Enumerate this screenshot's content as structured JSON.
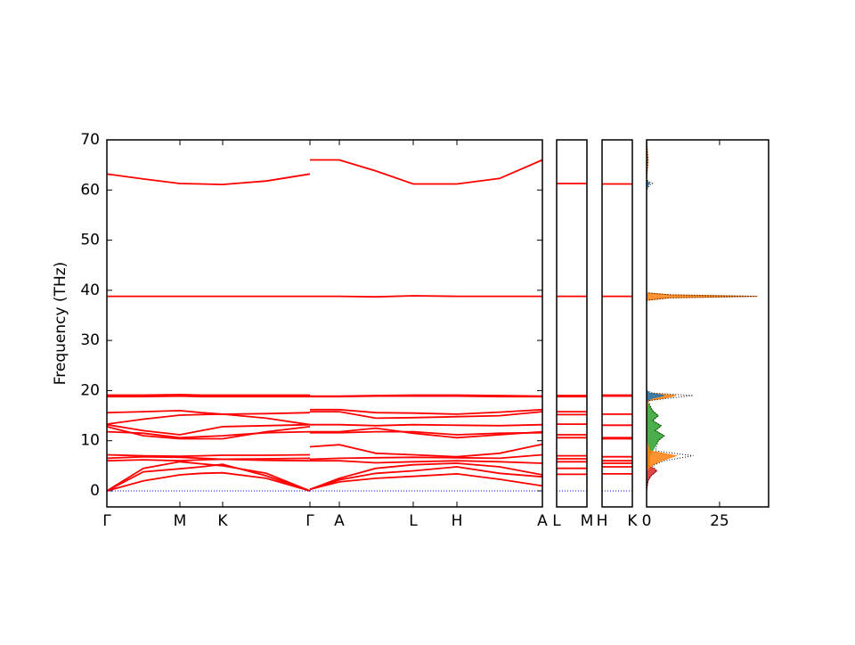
{
  "chart_data": [
    {
      "type": "line",
      "ylabel": "Frequency (THz)",
      "x": [
        0,
        0.41,
        0.82,
        1.06,
        1.3,
        1.79,
        2.28,
        2.28,
        2.28,
        2.61,
        3.02,
        3.44,
        3.93,
        4.41,
        4.89
      ],
      "xlim": [
        0,
        4.89
      ],
      "xticks": [
        {
          "value": 0,
          "label": "Γ"
        },
        {
          "value": 0.82,
          "label": "M"
        },
        {
          "value": 1.3,
          "label": "K"
        },
        {
          "value": 2.28,
          "label": "Γ"
        },
        {
          "value": 2.61,
          "label": "A"
        },
        {
          "value": 3.44,
          "label": "L"
        },
        {
          "value": 3.93,
          "label": "H"
        },
        {
          "value": 4.89,
          "label": "A"
        }
      ],
      "ylim": [
        -3.2,
        70
      ],
      "yticks": [
        0,
        10,
        20,
        30,
        40,
        50,
        60,
        70
      ],
      "series": [
        {
          "color": "#ff0000",
          "values": [
            63.2,
            62.2,
            61.3,
            61.2,
            61.1,
            61.8,
            63.2,
            null,
            66,
            66,
            63.8,
            61.2,
            61.2,
            62.3,
            66
          ]
        },
        {
          "color": "#ff0000",
          "values": [
            38.8,
            38.8,
            38.8,
            38.8,
            38.8,
            38.8,
            38.8,
            null,
            38.8,
            38.8,
            38.7,
            38.9,
            38.8,
            38.8,
            38.8
          ]
        },
        {
          "color": "#ff0000",
          "values": [
            19.1,
            19.1,
            19.2,
            19.1,
            19.1,
            19.1,
            19.1,
            null,
            18.9,
            18.9,
            19.0,
            19.1,
            19.1,
            19.0,
            18.9
          ]
        },
        {
          "color": "#ff0000",
          "values": [
            18.8,
            18.8,
            18.9,
            18.8,
            18.8,
            18.8,
            18.8,
            null,
            18.8,
            18.8,
            18.9,
            18.9,
            18.9,
            18.8,
            18.8
          ]
        },
        {
          "color": "#ff0000",
          "values": [
            15.6,
            15.8,
            16.0,
            15.6,
            15.3,
            15.4,
            15.6,
            null,
            16.2,
            16.2,
            15.6,
            15.5,
            15.3,
            15.7,
            16.2
          ]
        },
        {
          "color": "#ff0000",
          "values": [
            13.3,
            14.3,
            15.1,
            15.2,
            15.3,
            14.5,
            13.2,
            null,
            15.8,
            15.8,
            14.5,
            14.6,
            14.8,
            15.0,
            15.8
          ]
        },
        {
          "color": "#ff0000",
          "values": [
            13.2,
            12.0,
            11.2,
            12.0,
            12.8,
            13.0,
            13.2,
            null,
            13.2,
            13.2,
            13.0,
            13.2,
            13.1,
            13.0,
            13.2
          ]
        },
        {
          "color": "#ff0000",
          "values": [
            12.8,
            11.0,
            10.4,
            10.4,
            10.4,
            11.8,
            12.8,
            null,
            11.8,
            11.8,
            12.5,
            11.5,
            10.6,
            11.2,
            11.8
          ]
        },
        {
          "color": "#ff0000",
          "values": [
            11.8,
            11.5,
            10.6,
            10.8,
            11.0,
            11.6,
            11.8,
            null,
            11.6,
            11.6,
            11.8,
            11.8,
            11.2,
            11.5,
            11.6
          ]
        },
        {
          "color": "#ff0000",
          "values": [
            7.2,
            7.0,
            6.9,
            7.0,
            7.1,
            7.1,
            7.2,
            null,
            8.8,
            9.2,
            7.5,
            7.2,
            6.8,
            7.5,
            9.3
          ]
        },
        {
          "color": "#ff0000",
          "values": [
            6.5,
            6.8,
            6.7,
            6.5,
            6.3,
            6.4,
            6.5,
            null,
            6.3,
            6.5,
            6.6,
            6.7,
            6.6,
            6.5,
            7.2
          ]
        },
        {
          "color": "#ff0000",
          "values": [
            6.0,
            6.2,
            6.0,
            6.2,
            6.3,
            6.1,
            6.0,
            null,
            6.0,
            6.0,
            5.6,
            5.8,
            6.0,
            5.8,
            5.5
          ]
        },
        {
          "color": "#ff0000",
          "values": [
            0,
            4.5,
            5.8,
            5.4,
            5.0,
            3.5,
            0,
            null,
            0.3,
            2.5,
            4.5,
            5.2,
            5.5,
            4.8,
            3.2
          ]
        },
        {
          "color": "#ff0000",
          "values": [
            0,
            3.8,
            4.4,
            4.8,
            5.3,
            3.0,
            0,
            null,
            0.3,
            2.2,
            3.5,
            4.0,
            4.8,
            3.5,
            2.8
          ]
        },
        {
          "color": "#ff0000",
          "values": [
            0,
            2.0,
            3.2,
            3.5,
            3.6,
            2.5,
            0,
            null,
            0.3,
            1.8,
            2.5,
            2.9,
            3.4,
            2.3,
            1.0
          ]
        },
        {
          "color": "#0000ff",
          "linestyle": "dotted",
          "values": [
            0,
            0,
            0,
            0,
            0,
            0,
            0,
            null,
            0,
            0,
            0,
            0,
            0,
            0,
            0
          ]
        }
      ]
    },
    {
      "type": "line",
      "x": [
        0,
        1
      ],
      "xlim": [
        0,
        1
      ],
      "xticks": [
        {
          "value": 0,
          "label": "L"
        },
        {
          "value": 1,
          "label": "M"
        }
      ],
      "ylim": [
        -3.2,
        70
      ],
      "series": [
        {
          "color": "#ff0000",
          "values": [
            61.3,
            61.3
          ]
        },
        {
          "color": "#ff0000",
          "values": [
            38.8,
            38.8
          ]
        },
        {
          "color": "#ff0000",
          "values": [
            19.0,
            19.0
          ]
        },
        {
          "color": "#ff0000",
          "values": [
            18.8,
            18.8
          ]
        },
        {
          "color": "#ff0000",
          "values": [
            15.8,
            15.8
          ]
        },
        {
          "color": "#ff0000",
          "values": [
            15.2,
            15.2
          ]
        },
        {
          "color": "#ff0000",
          "values": [
            13.3,
            13.3
          ]
        },
        {
          "color": "#ff0000",
          "values": [
            11.2,
            11.2
          ]
        },
        {
          "color": "#ff0000",
          "values": [
            10.6,
            10.6
          ]
        },
        {
          "color": "#ff0000",
          "values": [
            7.0,
            7.0
          ]
        },
        {
          "color": "#ff0000",
          "values": [
            6.4,
            6.4
          ]
        },
        {
          "color": "#ff0000",
          "values": [
            5.8,
            5.8
          ]
        },
        {
          "color": "#ff0000",
          "values": [
            4.5,
            4.5
          ]
        },
        {
          "color": "#ff0000",
          "values": [
            3.3,
            3.3
          ]
        },
        {
          "color": "#0000ff",
          "linestyle": "dotted",
          "values": [
            0,
            0
          ]
        }
      ]
    },
    {
      "type": "line",
      "x": [
        0,
        1
      ],
      "xlim": [
        0,
        1
      ],
      "xticks": [
        {
          "value": 0,
          "label": "H"
        },
        {
          "value": 1,
          "label": "K"
        }
      ],
      "ylim": [
        -3.2,
        70
      ],
      "series": [
        {
          "color": "#ff0000",
          "values": [
            61.2,
            61.2
          ]
        },
        {
          "color": "#ff0000",
          "values": [
            38.8,
            38.8
          ]
        },
        {
          "color": "#ff0000",
          "values": [
            19.1,
            19.1
          ]
        },
        {
          "color": "#ff0000",
          "values": [
            18.9,
            18.9
          ]
        },
        {
          "color": "#ff0000",
          "values": [
            15.3,
            15.3
          ]
        },
        {
          "color": "#ff0000",
          "values": [
            13.1,
            13.1
          ]
        },
        {
          "color": "#ff0000",
          "values": [
            10.6,
            10.6
          ]
        },
        {
          "color": "#ff0000",
          "values": [
            10.4,
            10.4
          ]
        },
        {
          "color": "#ff0000",
          "values": [
            6.8,
            6.8
          ]
        },
        {
          "color": "#ff0000",
          "values": [
            6.0,
            6.0
          ]
        },
        {
          "color": "#ff0000",
          "values": [
            5.5,
            5.5
          ]
        },
        {
          "color": "#ff0000",
          "values": [
            4.8,
            4.8
          ]
        },
        {
          "color": "#ff0000",
          "values": [
            3.4,
            3.4
          ]
        },
        {
          "color": "#0000ff",
          "linestyle": "dotted",
          "values": [
            0,
            0
          ]
        }
      ]
    },
    {
      "type": "dos",
      "xlim": [
        0,
        41.8
      ],
      "xticks": [
        0,
        25
      ],
      "ylim": [
        -3.2,
        70
      ],
      "y": [
        0,
        2,
        3,
        4,
        5,
        6,
        7,
        8,
        10,
        11,
        12,
        13,
        14,
        15,
        16,
        18,
        18.5,
        19,
        19.5,
        20,
        38,
        38.5,
        38.8,
        39.1,
        39.5,
        60,
        61,
        61.3,
        61.6,
        62,
        66,
        70
      ],
      "series": [
        {
          "color": "#d62728",
          "fill": true,
          "values": [
            0,
            0.5,
            1.5,
            3.5,
            1,
            0.5,
            0,
            0,
            0,
            0,
            0,
            0,
            0,
            0,
            0,
            0,
            0,
            0,
            0,
            0,
            0,
            0,
            0,
            0,
            0,
            0,
            0,
            0,
            0,
            0,
            0,
            0
          ]
        },
        {
          "color": "#2ca02c",
          "fill": true,
          "values": [
            0,
            0,
            0,
            0,
            0.5,
            1,
            1,
            2,
            4,
            6,
            3,
            5,
            2,
            4,
            2,
            0,
            0,
            0,
            0,
            0,
            0,
            0,
            0,
            0,
            0,
            0,
            0,
            0,
            0,
            0,
            0,
            0
          ]
        },
        {
          "color": "#ff7f0e",
          "fill": true,
          "values": [
            0,
            0,
            0,
            0,
            1.5,
            5,
            10,
            1,
            0,
            0,
            0,
            0,
            0,
            0,
            0,
            0.5,
            6,
            10,
            1,
            0,
            0,
            8,
            38,
            8,
            0,
            0,
            0.5,
            1,
            0.5,
            0,
            0.5,
            0
          ]
        },
        {
          "color": "#1f77b4",
          "fill": true,
          "values": [
            0,
            0,
            0,
            0,
            0,
            0,
            0,
            0,
            0,
            0,
            0,
            0,
            0,
            0,
            0,
            0,
            2,
            6,
            1,
            0,
            0,
            0,
            0,
            0,
            0,
            0,
            0.5,
            1,
            0.5,
            0,
            0,
            0
          ]
        },
        {
          "color": "#000000",
          "linestyle": "dotted",
          "values": [
            0,
            0.5,
            1.5,
            3.5,
            2,
            6,
            16,
            3,
            4,
            6,
            3,
            5,
            2,
            4,
            2,
            0.5,
            8,
            16,
            2,
            0,
            0,
            8,
            38,
            8,
            0,
            0,
            1,
            2,
            1,
            0,
            0.5,
            0
          ]
        }
      ]
    }
  ]
}
